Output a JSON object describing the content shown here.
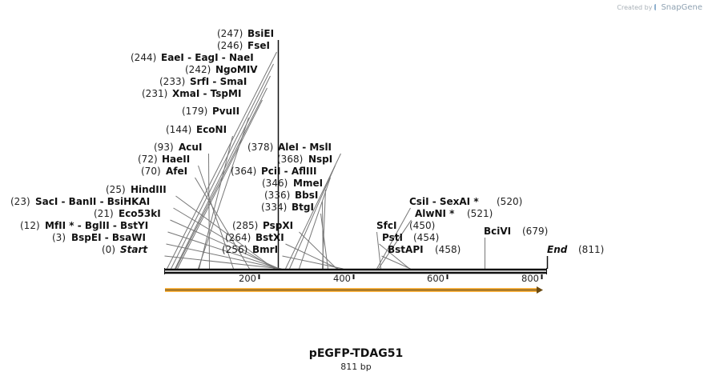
{
  "credit": {
    "prefix": "Created by",
    "brand": "SnapGene"
  },
  "plasmid": {
    "name": "pEGFP-TDAG51",
    "length_label": "811 bp",
    "total_bp": 811
  },
  "scale_ticks": [
    {
      "bp": 200,
      "label": "200"
    },
    {
      "bp": 400,
      "label": "400"
    },
    {
      "bp": 600,
      "label": "600"
    },
    {
      "bp": 800,
      "label": "800"
    }
  ],
  "feature": {
    "name": "orange-feature-arrow",
    "start": 0,
    "end": 811,
    "direction": "forward",
    "color": "#f5b041"
  },
  "label_rows": [
    {
      "pos": "(247)",
      "names": [
        "BsiEI"
      ]
    },
    {
      "pos": "(246)",
      "names": [
        "FseI"
      ]
    },
    {
      "pos": "(244)",
      "names": [
        "EaeI",
        "EagI",
        "NaeI"
      ]
    },
    {
      "pos": "(242)",
      "names": [
        "NgoMIV"
      ]
    },
    {
      "pos": "(233)",
      "names": [
        "SrfI",
        "SmaI"
      ]
    },
    {
      "pos": "(231)",
      "names": [
        "XmaI",
        "TspMI"
      ]
    },
    {
      "pos": "(179)",
      "names": [
        "PvuII"
      ]
    },
    {
      "pos": "(144)",
      "names": [
        "EcoNI"
      ]
    },
    {
      "pos": "(93)",
      "names": [
        "AcuI"
      ]
    },
    {
      "pos": "(72)",
      "names": [
        "HaeII"
      ]
    },
    {
      "pos": "(70)",
      "names": [
        "AfeI"
      ]
    },
    {
      "pos": "(25)",
      "names": [
        "HindIII"
      ]
    },
    {
      "pos": "(23)",
      "names": [
        "SacI",
        "BanII",
        "BsiHKAI"
      ]
    },
    {
      "pos": "(21)",
      "names": [
        "Eco53kI"
      ]
    },
    {
      "pos": "(12)",
      "names": [
        "MfII *",
        "BglII",
        "BstYI"
      ]
    },
    {
      "pos": "(3)",
      "names": [
        "BspEI",
        "BsaWI"
      ]
    },
    {
      "pos": "(0)",
      "names": [
        "Start"
      ]
    },
    {
      "pos": "(378)",
      "names": [
        "AleI",
        "MslI"
      ]
    },
    {
      "pos": "(368)",
      "names": [
        "NspI"
      ]
    },
    {
      "pos": "(364)",
      "names": [
        "PciI",
        "AflIII"
      ]
    },
    {
      "pos": "(346)",
      "names": [
        "MmeI"
      ]
    },
    {
      "pos": "(336)",
      "names": [
        "BbsI"
      ]
    },
    {
      "pos": "(334)",
      "names": [
        "BtgI"
      ]
    },
    {
      "pos": "(285)",
      "names": [
        "PspXI"
      ]
    },
    {
      "pos": "(264)",
      "names": [
        "BstXI"
      ]
    },
    {
      "pos": "(256)",
      "names": [
        "BmrI"
      ]
    },
    {
      "pos": "(520)",
      "names": [
        "CsiI",
        "SexAI *"
      ]
    },
    {
      "pos": "(521)",
      "names": [
        "AlwNI *"
      ]
    },
    {
      "pos": "(450)",
      "names": [
        "SfcI"
      ]
    },
    {
      "pos": "(454)",
      "names": [
        "PstI"
      ]
    },
    {
      "pos": "(458)",
      "names": [
        "BstAPI"
      ]
    },
    {
      "pos": "(679)",
      "names": [
        "BciVI"
      ]
    },
    {
      "pos": "(811)",
      "names": [
        "End"
      ]
    }
  ],
  "site_lines": [
    0,
    3,
    12,
    21,
    23,
    25,
    70,
    72,
    93,
    144,
    179,
    231,
    233,
    242,
    244,
    246,
    247,
    256,
    264,
    285,
    334,
    336,
    346,
    364,
    368,
    378,
    450,
    454,
    458,
    520,
    521,
    679,
    811
  ]
}
